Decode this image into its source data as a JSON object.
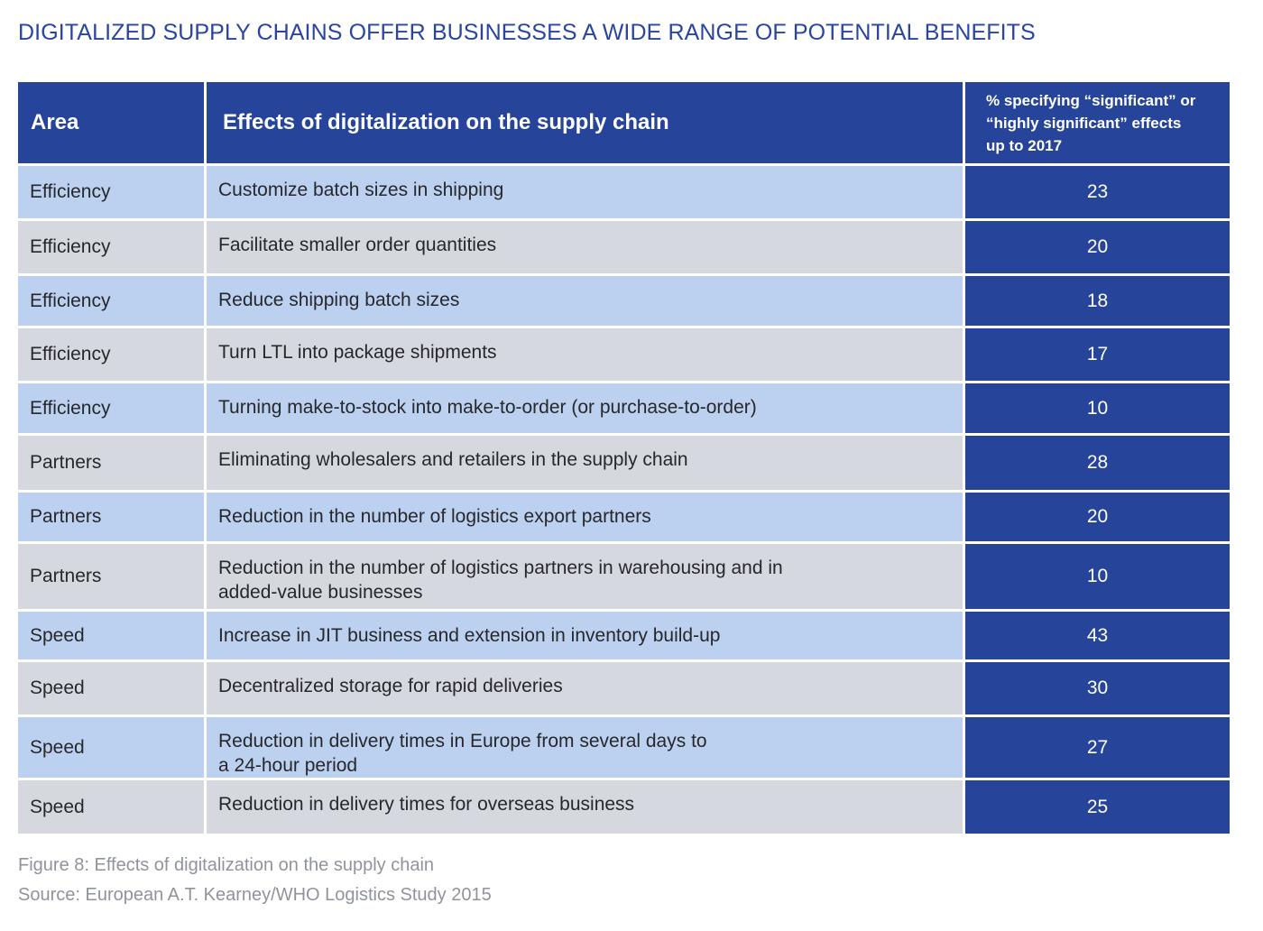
{
  "title": "DIGITALIZED SUPPLY CHAINS OFFER BUSINESSES A WIDE RANGE OF POTENTIAL BENEFITS",
  "table": {
    "headers": {
      "area": "Area",
      "effect": "Effects of digitalization on the supply chain",
      "pct": "% specifying “significant” or\n“highly significant” effects\nup to 2017"
    }
  },
  "chart_data": {
    "type": "table",
    "columns": [
      "Area",
      "Effects of digitalization on the supply chain",
      "% specifying “significant” or “highly significant” effects up to 2017"
    ],
    "rows": [
      {
        "area": "Efficiency",
        "effect": "Customize batch sizes in shipping",
        "value": "23"
      },
      {
        "area": "Efficiency",
        "effect": "Facilitate smaller order quantities",
        "value": "20"
      },
      {
        "area": "Efficiency",
        "effect": "Reduce shipping batch sizes",
        "value": "18"
      },
      {
        "area": "Efficiency",
        "effect": "Turn LTL into package shipments",
        "value": "17"
      },
      {
        "area": "Efficiency",
        "effect": "Turning make-to-stock into make-to-order (or purchase-to-order)",
        "value": "10"
      },
      {
        "area": "Partners",
        "effect": "Eliminating wholesalers and retailers in the supply chain",
        "value": "28"
      },
      {
        "area": "Partners",
        "effect": "Reduction in the number of logistics export partners",
        "value": "20"
      },
      {
        "area": "Partners",
        "effect": "Reduction in the number of logistics partners in warehousing and in\nadded-value businesses",
        "value": "10"
      },
      {
        "area": "Speed",
        "effect": "Increase in JIT business and extension in inventory build-up",
        "value": "43"
      },
      {
        "area": "Speed",
        "effect": "Decentralized storage for rapid deliveries",
        "value": "30"
      },
      {
        "area": "Speed",
        "effect": "Reduction in delivery times in Europe from several days to\na 24-hour period",
        "value": "27"
      },
      {
        "area": "Speed",
        "effect": "Reduction in delivery times for overseas business",
        "value": "25"
      }
    ]
  },
  "caption": {
    "figure": "Figure 8: Effects of digitalization on the supply chain",
    "source": "Source: European A.T. Kearney/WHO Logistics Study 2015"
  },
  "colors": {
    "title": "#2a45a0",
    "header_bg": "#25449a",
    "row_blue": "#bcd0ef",
    "row_gray": "#d5d8de",
    "caption": "#8f949b"
  }
}
